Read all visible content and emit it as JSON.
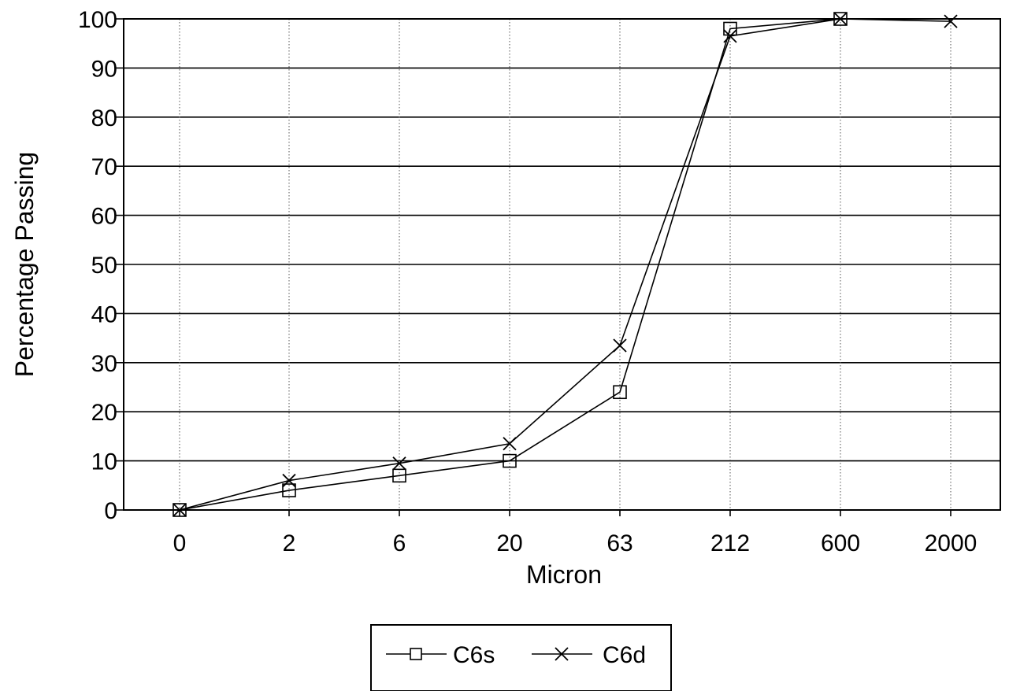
{
  "chart_data": {
    "type": "line",
    "title": "",
    "xlabel": "Micron",
    "ylabel": "Percentage Passing",
    "categories": [
      "0",
      "2",
      "6",
      "20",
      "63",
      "212",
      "600",
      "2000"
    ],
    "ylim": [
      0,
      100
    ],
    "yticks": [
      "0",
      "10",
      "20",
      "30",
      "40",
      "50",
      "60",
      "70",
      "80",
      "90",
      "100"
    ],
    "grid": true,
    "legend_position": "bottom-center",
    "series": [
      {
        "name": "C6s",
        "marker": "square",
        "color": "#000000",
        "values": [
          0,
          4,
          7,
          10,
          24,
          98,
          100,
          null
        ]
      },
      {
        "name": "C6d",
        "marker": "x",
        "color": "#000000",
        "values": [
          0,
          6,
          9.5,
          13.5,
          33.5,
          96.5,
          100,
          99.5
        ]
      }
    ]
  }
}
